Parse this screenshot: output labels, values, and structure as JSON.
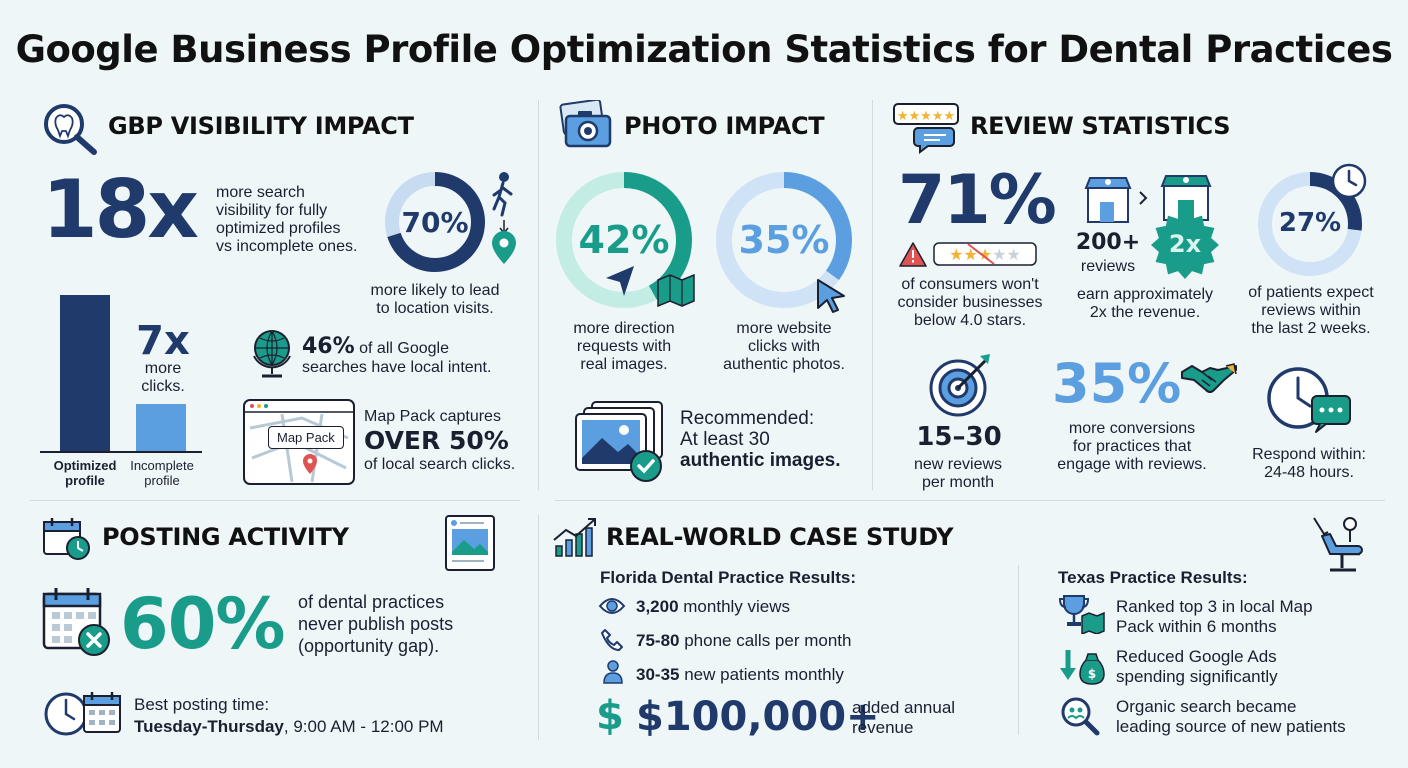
{
  "title": "Google Business Profile Optimization Statistics for Dental Practices",
  "colors": {
    "navy": "#1f3a6b",
    "teal": "#1a9c8a",
    "light_blue": "#5b9fe0",
    "bg": "#eef6f8"
  },
  "visibility": {
    "heading": "GBP VISIBILITY IMPACT",
    "stat_18x": "18x",
    "stat_18x_desc": [
      "more search",
      "visibility for fully",
      "optimized profiles",
      "vs incomplete ones."
    ],
    "donut_70_value": "70%",
    "donut_70_fraction": 0.7,
    "donut_70_desc": [
      "more likely to lead",
      "to location visits."
    ],
    "bar_optimized_label": [
      "Optimized",
      "profile"
    ],
    "bar_incomplete_label": [
      "Incomplete",
      "profile"
    ],
    "stat_7x": "7x",
    "stat_7x_desc": [
      "more",
      "clicks."
    ],
    "local_intent_value": "46%",
    "local_intent_desc_1": "of all Google",
    "local_intent_desc_2": "searches have local intent.",
    "map_pack_tag": "Map Pack",
    "map_pack_line1": "Map Pack captures",
    "map_pack_big": "OVER 50%",
    "map_pack_line3": "of local search clicks."
  },
  "photo": {
    "heading": "PHOTO IMPACT",
    "donut_42_value": "42%",
    "donut_42_fraction": 0.42,
    "donut_42_desc": [
      "more direction",
      "requests with",
      "real images."
    ],
    "donut_35_value": "35%",
    "donut_35_fraction": 0.35,
    "donut_35_desc": [
      "more website",
      "clicks with",
      "authentic photos."
    ],
    "recommended_1": "Recommended:",
    "recommended_2": "At least 30",
    "recommended_3": "authentic images."
  },
  "reviews": {
    "heading": "REVIEW STATISTICS",
    "stat_71": "71%",
    "stat_71_desc": [
      "of consumers won't",
      "consider businesses",
      "below 4.0 stars."
    ],
    "stat_200": "200+",
    "stat_200_sub": "reviews",
    "badge_2x": "2x",
    "stat_2x_desc": [
      "earn approximately",
      "2x the revenue."
    ],
    "donut_27_value": "27%",
    "donut_27_fraction": 0.27,
    "donut_27_desc": [
      "of patients expect",
      "reviews within",
      "the last 2 weeks."
    ],
    "stat_1530": "15–30",
    "stat_1530_desc": [
      "new reviews",
      "per month"
    ],
    "stat_35": "35%",
    "stat_35_desc": [
      "more conversions",
      "for practices that",
      "engage with reviews."
    ],
    "respond_desc": [
      "Respond within:",
      "24-48 hours."
    ]
  },
  "posting": {
    "heading": "POSTING ACTIVITY",
    "stat_60": "60%",
    "stat_60_desc": [
      "of dental practices",
      "never publish posts",
      "(opportunity gap)."
    ],
    "best_time_label": "Best posting time:",
    "best_time_days": "Tuesday-Thursday",
    "best_time_hours": ", 9:00 AM - 12:00 PM"
  },
  "case_study": {
    "heading": "REAL-WORLD CASE STUDY",
    "florida_title": "Florida Dental Practice Results:",
    "fl_views_bold": "3,200",
    "fl_views_rest": " monthly views",
    "fl_calls_bold": "75-80",
    "fl_calls_rest": " phone calls per month",
    "fl_patients_bold": "30-35",
    "fl_patients_rest": " new patients monthly",
    "fl_revenue": "$100,000+",
    "fl_revenue_desc": [
      "added annual",
      "revenue"
    ],
    "texas_title": "Texas Practice Results:",
    "tx_item1": [
      "Ranked top 3 in local Map",
      "Pack within 6 months"
    ],
    "tx_item2": [
      "Reduced Google Ads",
      "spending significantly"
    ],
    "tx_item3": [
      "Organic search became",
      "leading source of new patients"
    ]
  }
}
